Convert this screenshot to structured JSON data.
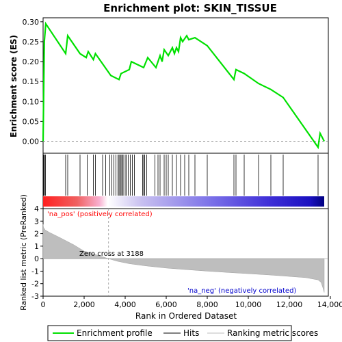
{
  "chart_data": {
    "type": "line",
    "title": "Enrichment plot: SKIN_TISSUE",
    "top_panel": {
      "ylabel": "Enrichment score (ES)",
      "ylim": [
        -0.03,
        0.31
      ],
      "yticks": [
        0.0,
        0.05,
        0.1,
        0.15,
        0.2,
        0.25,
        0.3
      ],
      "ytick_labels": [
        "0.00",
        "0.05",
        "0.10",
        "0.15",
        "0.20",
        "0.25",
        "0.30"
      ],
      "series": {
        "name": "Enrichment profile",
        "color": "#00e000",
        "x": [
          0,
          60,
          130,
          1100,
          1200,
          1800,
          2100,
          2200,
          2450,
          2550,
          3300,
          3700,
          3800,
          4200,
          4300,
          4900,
          5100,
          5500,
          5700,
          5800,
          5900,
          6100,
          6300,
          6400,
          6500,
          6600,
          6700,
          6800,
          7000,
          7100,
          7400,
          8000,
          9300,
          9400,
          9800,
          10500,
          11100,
          11700,
          13400,
          13500,
          13700
        ],
        "y": [
          0.0,
          0.25,
          0.295,
          0.22,
          0.265,
          0.22,
          0.21,
          0.225,
          0.205,
          0.22,
          0.165,
          0.155,
          0.17,
          0.18,
          0.2,
          0.185,
          0.21,
          0.185,
          0.215,
          0.2,
          0.23,
          0.215,
          0.235,
          0.22,
          0.235,
          0.225,
          0.26,
          0.25,
          0.265,
          0.255,
          0.26,
          0.24,
          0.155,
          0.18,
          0.17,
          0.145,
          0.13,
          0.11,
          -0.015,
          0.02,
          0.0
        ]
      }
    },
    "hits_panel": {
      "legend_name": "Hits",
      "positions": [
        30,
        80,
        120,
        1100,
        1200,
        1800,
        2150,
        2450,
        2550,
        2900,
        3050,
        3250,
        3350,
        3450,
        3550,
        3650,
        3700,
        3750,
        3800,
        3850,
        3900,
        4000,
        4050,
        4150,
        4250,
        4350,
        4450,
        4850,
        4900,
        4950,
        5050,
        5450,
        5600,
        5700,
        5900,
        6000,
        6100,
        6300,
        6500,
        6700,
        6900,
        7100,
        7400,
        8000,
        9300,
        9400,
        9800,
        10500,
        11100,
        11700,
        13400
      ]
    },
    "ranked_panel": {
      "ylabel": "Ranked list metric (PreRanked)",
      "xlabel": "Rank in Ordered Dataset",
      "legend_name": "Ranking metric scores",
      "ylim": [
        -3,
        4
      ],
      "yticks": [
        -3,
        -2,
        -1,
        0,
        1,
        2,
        3,
        4
      ],
      "ytick_labels": [
        "-3",
        "-2",
        "-1",
        "0",
        "1",
        "2",
        "3",
        "4"
      ],
      "xlim": [
        0,
        13900
      ],
      "xticks": [
        0,
        2000,
        4000,
        6000,
        8000,
        10000,
        12000,
        14000
      ],
      "xtick_labels": [
        "0",
        "2,000",
        "4,000",
        "6,000",
        "8,000",
        "10,000",
        "12,000",
        "14,000"
      ],
      "curve": {
        "x": [
          0,
          20,
          100,
          300,
          800,
          1500,
          2000,
          2600,
          3188,
          3600,
          4200,
          5000,
          6000,
          7000,
          8000,
          9000,
          10000,
          11000,
          12000,
          12800,
          13400,
          13550,
          13650,
          13700
        ],
        "y": [
          2.75,
          2.5,
          2.3,
          2.1,
          1.7,
          1.1,
          0.6,
          0.3,
          0.0,
          -0.2,
          -0.4,
          -0.58,
          -0.75,
          -0.88,
          -1.0,
          -1.1,
          -1.2,
          -1.3,
          -1.42,
          -1.52,
          -1.7,
          -1.9,
          -2.4,
          -2.7
        ]
      },
      "zero_cross": 3188,
      "annotations": {
        "zero_cross": "Zero cross at 3188",
        "pos": "'na_pos' (positively correlated)",
        "neg": "'na_neg' (negatively correlated)"
      }
    },
    "legend": {
      "entries": [
        "Enrichment profile",
        "Hits",
        "Ranking metric scores"
      ]
    },
    "colors": {
      "profile": "#00e000",
      "pos_label": "#ff0000",
      "neg_label": "#0000cc",
      "metric_fill": "#bebebe"
    }
  }
}
